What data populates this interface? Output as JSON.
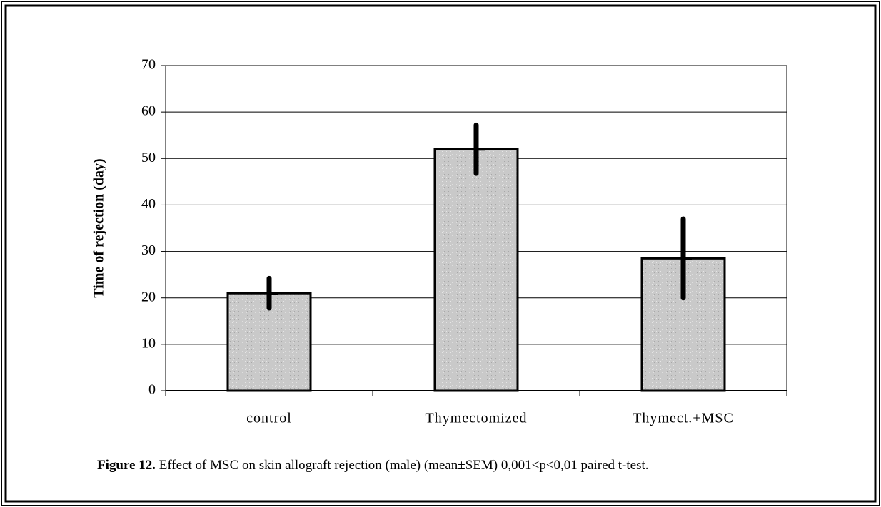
{
  "chart_data": {
    "type": "bar",
    "categories": [
      "control",
      "Thymectomized",
      "Thymect.+MSC"
    ],
    "values": [
      21,
      52,
      28.5
    ],
    "errors": [
      3.2,
      5.2,
      8.5
    ],
    "color": "#c9c9c9",
    "y_label": "Time of rejection (day)",
    "ylim": [
      0,
      70
    ],
    "yticks": [
      0,
      10,
      20,
      30,
      40,
      50,
      60,
      70
    ],
    "grid": true,
    "caption_label": "Figure 12.",
    "caption": " Effect of MSC on skin allograft rejection (male) (mean±SEM) 0,001<p<0,01 paired t-test."
  }
}
